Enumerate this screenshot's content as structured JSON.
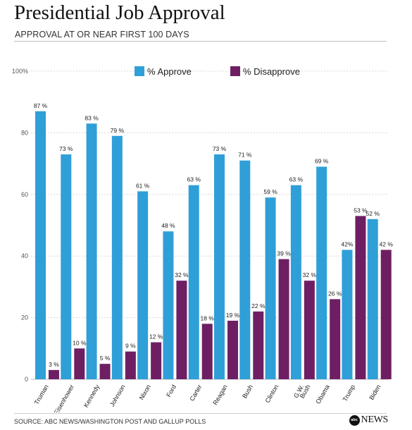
{
  "header": {
    "title": "Presidential Job Approval",
    "subtitle": "APPROVAL AT OR NEAR FIRST 100 DAYS"
  },
  "footer": {
    "source": "SOURCE: ABC NEWS/WASHINGTON POST AND GALLUP POLLS",
    "logo_badge": "abc",
    "logo_text": "NEWS"
  },
  "colors": {
    "approve": "#2f9fd8",
    "disapprove": "#6e1f63",
    "grid": "#d8d8d8",
    "axis": "#b5b5b5"
  },
  "chart_data": {
    "type": "bar",
    "title": "Presidential Job Approval",
    "subtitle": "APPROVAL AT OR NEAR FIRST 100 DAYS",
    "categories": [
      "Truman",
      "Eisenhower",
      "Kennedy",
      "Johnson",
      "Nixon",
      "Ford",
      "Carter",
      "Reagan",
      "Bush",
      "Clinton",
      "G.W. Bush",
      "Obama",
      "Trump",
      "Biden"
    ],
    "series": [
      {
        "name": "% Approve",
        "values": [
          87,
          73,
          83,
          79,
          61,
          48,
          63,
          73,
          71,
          59,
          63,
          69,
          42,
          52
        ],
        "labels": [
          "87 %",
          "73 %",
          "83 %",
          "79 %",
          "61 %",
          "48 %",
          "63 %",
          "73 %",
          "71 %",
          "59 %",
          "63 %",
          "69 %",
          "42%",
          "52 %"
        ]
      },
      {
        "name": "% Disapprove",
        "values": [
          3,
          10,
          5,
          9,
          12,
          32,
          18,
          19,
          22,
          39,
          32,
          26,
          53,
          42
        ],
        "labels": [
          "3 %",
          "10 %",
          "5 %",
          "9 %",
          "12 %",
          "32 %",
          "18 %",
          "19 %",
          "22 %",
          "39 %",
          "32 %",
          "26 %",
          "53 %",
          "42 %"
        ]
      }
    ],
    "ylim": [
      0,
      100
    ],
    "yticks": [
      0,
      20,
      40,
      60,
      80,
      100
    ],
    "ytick_labels": [
      "0",
      "20",
      "40",
      "60",
      "80",
      "100%"
    ],
    "grid": true,
    "legend_position": "top"
  }
}
